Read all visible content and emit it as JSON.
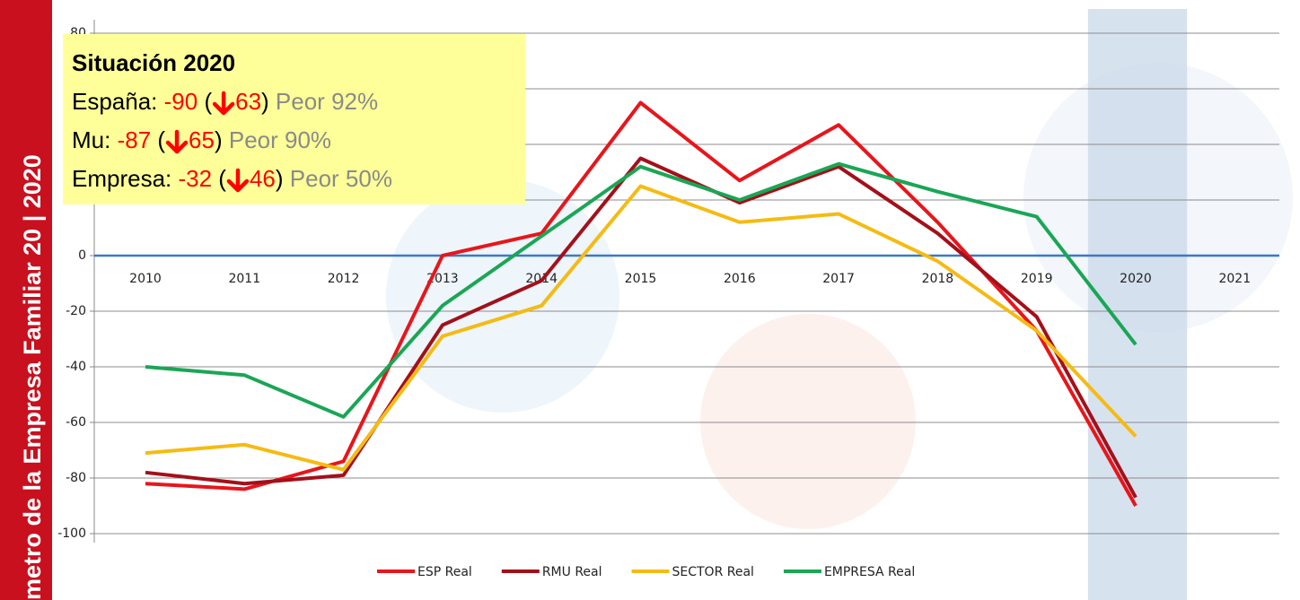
{
  "sidebar": "metro de la Empresa Familiar 20 | 2020",
  "chart_data": {
    "type": "line",
    "categories": [
      "2010",
      "2011",
      "2012",
      "2013",
      "2014",
      "2015",
      "2016",
      "2017",
      "2018",
      "2019",
      "2020",
      "2021"
    ],
    "series": [
      {
        "name": "ESP Real",
        "color": "#e8151b",
        "values": [
          -82,
          -84,
          -74,
          0,
          8,
          55,
          27,
          47,
          12,
          -27,
          -90,
          null
        ]
      },
      {
        "name": "RMU Real",
        "color": "#a3101a",
        "values": [
          -78,
          -82,
          -79,
          -25,
          -9,
          35,
          19,
          32,
          8,
          -22,
          -87,
          null
        ]
      },
      {
        "name": "SECTOR Real",
        "color": "#f5bb13",
        "values": [
          -71,
          -68,
          -77,
          -29,
          -18,
          25,
          12,
          15,
          -2,
          -27,
          -65,
          null
        ]
      },
      {
        "name": "EMPRESA Real",
        "color": "#1aa655",
        "values": [
          -40,
          -43,
          -58,
          -18,
          7,
          32,
          20,
          33,
          23,
          14,
          -32,
          null
        ]
      }
    ],
    "ylim": [
      -100,
      80
    ],
    "yticks": [
      80,
      60,
      40,
      20,
      0,
      -20,
      -40,
      -60,
      -80,
      -100
    ],
    "grid": true,
    "highlight_category": 10,
    "legend": "bottom",
    "annotation": {
      "title": "Situación 2020",
      "lines": [
        {
          "name": "España: ",
          "value": "-90",
          "open": " (",
          "change": "63",
          "close": ") ",
          "note": "Peor 92%"
        },
        {
          "name": "Mu: ",
          "value": "-87",
          "open": " (",
          "change": "65",
          "close": ") ",
          "note": "Peor 90%"
        },
        {
          "name": "Empresa: ",
          "value": "-32",
          "open": " (",
          "change": "46",
          "close": ") ",
          "note": "Peor 50%"
        }
      ]
    }
  }
}
